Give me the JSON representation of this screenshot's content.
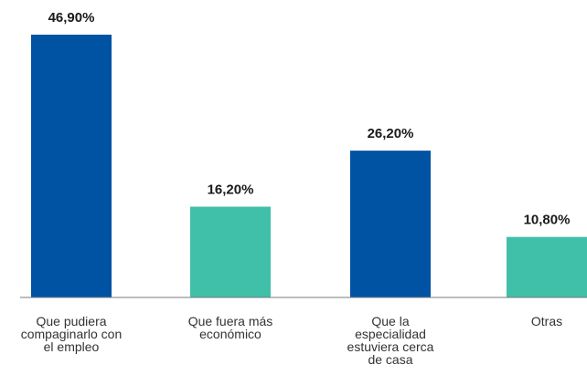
{
  "chart_data": {
    "type": "bar",
    "title": "",
    "xlabel": "",
    "ylabel": "",
    "ylim": [
      0,
      50
    ],
    "grid": false,
    "legend": "none",
    "categories": [
      "Que pudiera compaginarlo con el empleo",
      "Que fuera más económico",
      "Que la especialidad estuviera cerca de casa",
      "Otras"
    ],
    "category_lines": [
      [
        "Que pudiera",
        "compaginarlo con",
        "el empleo"
      ],
      [
        "Que fuera más",
        "económico"
      ],
      [
        "Que la",
        "especialidad",
        "estuviera cerca",
        "de casa"
      ],
      [
        "Otras"
      ]
    ],
    "values": [
      46.9,
      16.2,
      26.2,
      10.8
    ],
    "value_labels": [
      "46,90%",
      "16,20%",
      "26,20%",
      "10,80%"
    ],
    "bar_colors": [
      "#0052a3",
      "#40c0a8",
      "#0052a3",
      "#40c0a8"
    ]
  },
  "colors": {
    "primary_blue": "#0052a3",
    "teal": "#40c0a8",
    "baseline": "#7a7a7a",
    "text": "#333333"
  }
}
